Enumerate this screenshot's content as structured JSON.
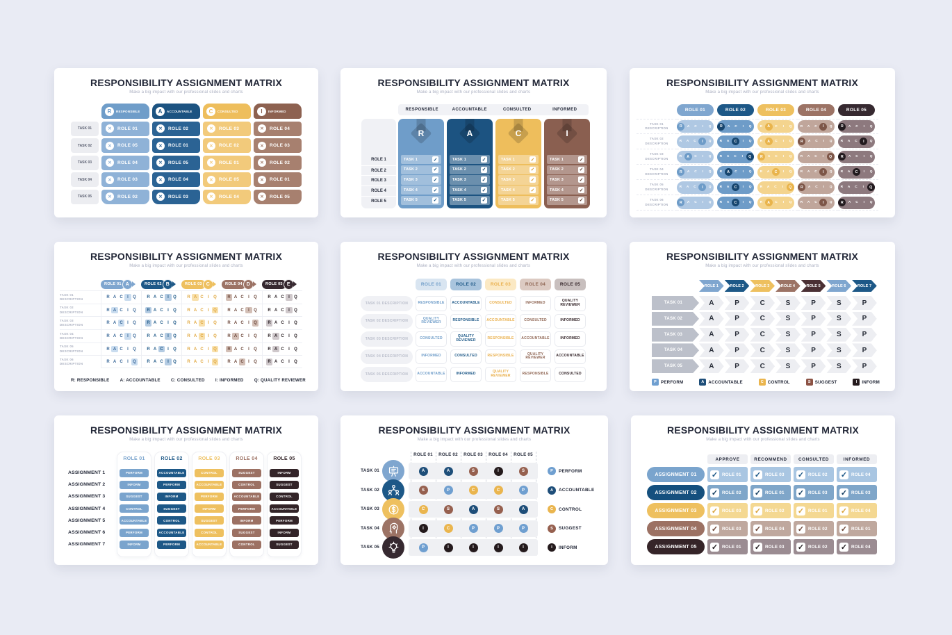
{
  "common": {
    "title": "RESPONSIBILITY ASSIGNMENT MATRIX",
    "subtitle": "Make a big impact with our professional slides and charts"
  },
  "slide1": {
    "columns": [
      {
        "letter": "R",
        "label": "RESPONSIBLE",
        "header": "#6F9DC9",
        "cell": "#8FB2D7"
      },
      {
        "letter": "A",
        "label": "ACCOUNTABLE",
        "header": "#1C5381",
        "cell": "#2B6394"
      },
      {
        "letter": "C",
        "label": "CONSULTED",
        "header": "#EEBE5C",
        "cell": "#F2CA7B"
      },
      {
        "letter": "I",
        "label": "INFORMED",
        "header": "#8D6150",
        "cell": "#A7806F"
      }
    ],
    "x_mark": "✕",
    "tasks": [
      "TASK 01",
      "TASK 02",
      "TASK 03",
      "TASK 04",
      "TASK 05"
    ],
    "rows": [
      [
        "ROLE 01",
        "ROLE 02",
        "ROLE 03",
        "ROLE 04"
      ],
      [
        "ROLE 05",
        "ROLE 01",
        "ROLE 02",
        "ROLE 03"
      ],
      [
        "ROLE 04",
        "ROLE 05",
        "ROLE 01",
        "ROLE 02"
      ],
      [
        "ROLE 03",
        "ROLE 04",
        "ROLE 05",
        "ROLE 01"
      ],
      [
        "ROLE 02",
        "ROLE 03",
        "ROLE 04",
        "ROLE 05"
      ]
    ]
  },
  "slide2": {
    "headers": [
      "RESPONSIBLE",
      "ACCOUNTABLE",
      "CONSULTED",
      "INFORMED"
    ],
    "roles": [
      "ROLE 1",
      "ROLE 2",
      "ROLE 3",
      "ROLE 4",
      "ROLE 5"
    ],
    "columns": [
      {
        "letter": "R",
        "color": "#6F9DC9",
        "check": "#1D5887"
      },
      {
        "letter": "A",
        "color": "#1C5381",
        "check": "#17466F"
      },
      {
        "letter": "C",
        "color": "#EEBE5C",
        "check": "#D79A33"
      },
      {
        "letter": "I",
        "color": "#8A5F50",
        "check": "#5F3D33"
      }
    ],
    "tasks": [
      "TASK 1",
      "TASK 2",
      "TASK 3",
      "TASK 4",
      "TASK 5"
    ],
    "check_mark": "✓"
  },
  "slide3": {
    "roles": [
      "ROLE 01",
      "ROLE 02",
      "ROLE 03",
      "ROLE 04",
      "ROLE 05"
    ],
    "role_colors": [
      "#7FA6CF",
      "#1D5887",
      "#EEC05F",
      "#9C7365",
      "#362930"
    ],
    "pill_colors": [
      "#AFC8E3",
      "#6E9CC8",
      "#F4D48E",
      "#C0A69B",
      "#8D797E"
    ],
    "dot_colors": [
      "#6E9CC8",
      "#17466F",
      "#E9B44C",
      "#7D5648",
      "#221A1E"
    ],
    "letters": [
      "R",
      "A",
      "C",
      "I",
      "Q"
    ],
    "tasks": [
      "TASK 01",
      "TASK 02",
      "TASK 03",
      "TASK 04",
      "TASK 05",
      "TASK 06"
    ],
    "task_sub": "DESCRIPTION",
    "highlights": [
      [
        "R",
        "R",
        "A",
        "I",
        "R"
      ],
      [
        "I",
        "C",
        "A",
        "R",
        "I"
      ],
      [
        "A",
        "Q",
        "R",
        "Q",
        "R"
      ],
      [
        "R",
        "A",
        "C",
        "I",
        "C"
      ],
      [
        "I",
        "C",
        "Q",
        "R",
        "Q"
      ],
      [
        "R",
        "C",
        "A",
        "I",
        "R"
      ]
    ]
  },
  "slide4": {
    "roles": [
      {
        "label": "ROLE 01",
        "letter": "A"
      },
      {
        "label": "ROLE 02",
        "letter": "B"
      },
      {
        "label": "ROLE 03",
        "letter": "C"
      },
      {
        "label": "ROLE 04",
        "letter": "D"
      },
      {
        "label": "ROLE 05",
        "letter": "E"
      }
    ],
    "role_colors": [
      "#7FA6CF",
      "#1D5887",
      "#EEC05F",
      "#9C7365",
      "#362930"
    ],
    "letter_colors": [
      "#3C6A9A",
      "#1D5887",
      "#E0A73E",
      "#6E4A3D",
      "#2A2125"
    ],
    "tint_colors": [
      "#C9DCEF",
      "#B4CBE2",
      "#F8E0AC",
      "#D3BFB6",
      "#CFC8CB"
    ],
    "letters": [
      "R",
      "A",
      "C",
      "I",
      "Q"
    ],
    "tasks": [
      "TASK 01",
      "TASK 02",
      "TASK 03",
      "TASK 04",
      "TASK 05",
      "TASK 06"
    ],
    "task_sub": "DESCRIPTION",
    "highlights": [
      [
        "I",
        "I",
        "A",
        "R",
        "I"
      ],
      [
        "A",
        "R",
        "Q",
        "I",
        "I"
      ],
      [
        "C",
        "R",
        "C",
        "Q",
        "R"
      ],
      [
        "I",
        "I",
        "C",
        "A",
        "A"
      ],
      [
        "A",
        "C",
        "Q",
        "R",
        "A"
      ],
      [
        "Q",
        "I",
        "Q",
        "C",
        "R"
      ]
    ],
    "legend": [
      "R: RESPONSIBLE",
      "A: ACCOUNTABLE",
      "C: CONSULTED",
      "I: INFORMED",
      "Q: QUALITY REVIEWER"
    ]
  },
  "slide5": {
    "roles": [
      "ROLE 01",
      "ROLE 02",
      "ROLE 03",
      "ROLE 04",
      "ROLE 05"
    ],
    "header_bg": [
      "#D9E5F1",
      "#A9C4DD",
      "#FBE9C4",
      "#DCCAC2",
      "#C8BFBE"
    ],
    "text_colors": [
      "#6F9DC9",
      "#1D5887",
      "#E9AF4B",
      "#8F6553",
      "#332428"
    ],
    "tasks": [
      "TASK 01 DESCRIPTION",
      "TASK 02 DESCRIPTION",
      "TASK 03 DESCRIPTION",
      "TASK 04 DESCRIPTION",
      "TASK 05 DESCRIPTION"
    ],
    "rows": [
      [
        "RESPONSIBLE",
        "ACCOUNTABLE",
        "CONSULTED",
        "INFORMED",
        "QUALITY REVIEWER"
      ],
      [
        "QUALITY REVIEWER",
        "RESPONSIBLE",
        "ACCOUNTABLE",
        "CONSULTED",
        "INFORMED"
      ],
      [
        "CONSULTED",
        "QUALITY REVIEWER",
        "RESPONSIBLE",
        "ACCOUNTABLE",
        "INFORMED"
      ],
      [
        "INFORMED",
        "CONSULTED",
        "RESPONSIBLE",
        "QUALITY REVIEWER",
        "ACCOUNTABLE"
      ],
      [
        "ACCOUNTABLE",
        "INFORMED",
        "QUALITY REVIEWER",
        "RESPONSIBLE",
        "CONSULTED"
      ]
    ]
  },
  "slide6": {
    "roles": [
      "ROLE 1",
      "ROLE 2",
      "ROLE 3",
      "ROLE 4",
      "ROLE 5",
      "ROLE 6",
      "ROLE 7"
    ],
    "role_colors": [
      "#7FA6CF",
      "#1D5887",
      "#EEC05F",
      "#9C7365",
      "#4A3034",
      "#7FA6CF",
      "#1D5887"
    ],
    "tasks": [
      "TASK 01",
      "TASK 02",
      "TASK 03",
      "TASK 04",
      "TASK 05"
    ],
    "rows": [
      [
        "A",
        "P",
        "C",
        "S",
        "P",
        "S",
        "P"
      ],
      [
        "A",
        "P",
        "C",
        "S",
        "P",
        "S",
        "P"
      ],
      [
        "A",
        "P",
        "C",
        "S",
        "P",
        "S",
        "P"
      ],
      [
        "A",
        "P",
        "C",
        "S",
        "P",
        "S",
        "P"
      ],
      [
        "A",
        "P",
        "C",
        "S",
        "P",
        "S",
        "P"
      ]
    ],
    "legend": [
      {
        "letter": "P",
        "label": "PERFORM",
        "color": "#6F9FD0"
      },
      {
        "letter": "A",
        "label": "ACCOUNTABLE",
        "color": "#1E4E79"
      },
      {
        "letter": "C",
        "label": "CONTROL",
        "color": "#EAB54E"
      },
      {
        "letter": "S",
        "label": "SUGGEST",
        "color": "#8C5345"
      },
      {
        "letter": "I",
        "label": "INFORM",
        "color": "#241A1C"
      }
    ]
  },
  "slide7": {
    "roles": [
      "ROLE 01",
      "ROLE 02",
      "ROLE 03",
      "ROLE 04",
      "ROLE 05"
    ],
    "role_colors": [
      "#7AA4CD",
      "#1D5887",
      "#EEC05F",
      "#9C7163",
      "#332428"
    ],
    "assignments": [
      "ASSIGNMENT 1",
      "ASSIGNMENT 2",
      "ASSIGNMENT 3",
      "ASSIGNMENT 4",
      "ASSIGNMENT 5",
      "ASSIGNMENT 6",
      "ASSIGNMENT 7"
    ],
    "rows": [
      [
        "PERFORM",
        "ACCOUNTABLE",
        "CONTROL",
        "SUGGEST",
        "INFORM"
      ],
      [
        "INFORM",
        "PERFORM",
        "ACCOUNTABLE",
        "CONTROL",
        "SUGGEST"
      ],
      [
        "SUGGEST",
        "INFORM",
        "PERFORM",
        "ACCOUNTABLE",
        "CONTROL"
      ],
      [
        "CONTROL",
        "SUGGEST",
        "INFORM",
        "PERFORM",
        "ACCOUNTABLE"
      ],
      [
        "ACCOUNTABLE",
        "CONTROL",
        "SUGGEST",
        "INFORM",
        "PERFORM"
      ],
      [
        "PERFORM",
        "ACCOUNTABLE",
        "CONTROL",
        "SUGGEST",
        "INFORM"
      ],
      [
        "INFORM",
        "PERFORM",
        "ACCOUNTABLE",
        "CONTROL",
        "SUGGEST"
      ]
    ]
  },
  "slide8": {
    "roles": [
      "ROLE 01",
      "ROLE 02",
      "ROLE 03",
      "ROLE 04",
      "ROLE 05"
    ],
    "tasks": [
      {
        "label": "TASK 01",
        "icon": "presentation-icon",
        "color": "#7FA6CF"
      },
      {
        "label": "TASK 02",
        "icon": "team-icon",
        "color": "#1D5887"
      },
      {
        "label": "TASK 03",
        "icon": "money-icon",
        "color": "#EEC05F"
      },
      {
        "label": "TASK 04",
        "icon": "head-gear-icon",
        "color": "#9C7365"
      },
      {
        "label": "TASK 05",
        "icon": "idea-icon",
        "color": "#362930"
      }
    ],
    "rows": [
      [
        "A",
        "A",
        "S",
        "I",
        "S"
      ],
      [
        "S",
        "P",
        "C",
        "C",
        "P"
      ],
      [
        "C",
        "S",
        "A",
        "S",
        "A"
      ],
      [
        "I",
        "C",
        "P",
        "P",
        "P"
      ],
      [
        "P",
        "I",
        "I",
        "I",
        "I"
      ]
    ],
    "letter_colors": {
      "P": "#6F9FD0",
      "A": "#1E4E79",
      "C": "#EAB54E",
      "S": "#96604F",
      "I": "#241A1C"
    },
    "legend": [
      {
        "letter": "P",
        "label": "PERFORM",
        "color": "#6F9FD0"
      },
      {
        "letter": "A",
        "label": "ACCOUNTABLE",
        "color": "#1E4E79"
      },
      {
        "letter": "C",
        "label": "CONTROL",
        "color": "#EAB54E"
      },
      {
        "letter": "S",
        "label": "SUGGEST",
        "color": "#96604F"
      },
      {
        "letter": "I",
        "label": "INFORM",
        "color": "#241A1C"
      }
    ]
  },
  "slide9": {
    "headers": [
      "APPROVE",
      "RECOMMEND",
      "CONSULTED",
      "INFORMED"
    ],
    "assignments": [
      "ASSIGNMENT 01",
      "ASSIGNMENT 02",
      "ASSIGNMENT 03",
      "ASSIGNMENT 04",
      "ASSIGNMENT 05"
    ],
    "assignment_colors": [
      "#7AA4CD",
      "#15507E",
      "#EEC05F",
      "#9C7163",
      "#352428"
    ],
    "cell_bg": [
      "#A9C6E2",
      "#7FA6C9",
      "#F4D892",
      "#BFA89E",
      "#9B8C92"
    ],
    "check_colors": [
      "#1D5887",
      "#123C5F",
      "#D9A33B",
      "#6B4435",
      "#201B1E"
    ],
    "check_mark": "✓",
    "rows": [
      [
        "ROLE 01",
        "ROLE 03",
        "ROLE 02",
        "ROLE 04"
      ],
      [
        "ROLE 02",
        "ROLE 01",
        "ROLE 03",
        "ROLE 03"
      ],
      [
        "ROLE 03",
        "ROLE 02",
        "ROLE 01",
        "ROLE 04"
      ],
      [
        "ROLE 03",
        "ROLE 04",
        "ROLE 02",
        "ROLE 01"
      ],
      [
        "ROLE 01",
        "ROLE 03",
        "ROLE 02",
        "ROLE 04"
      ]
    ]
  }
}
